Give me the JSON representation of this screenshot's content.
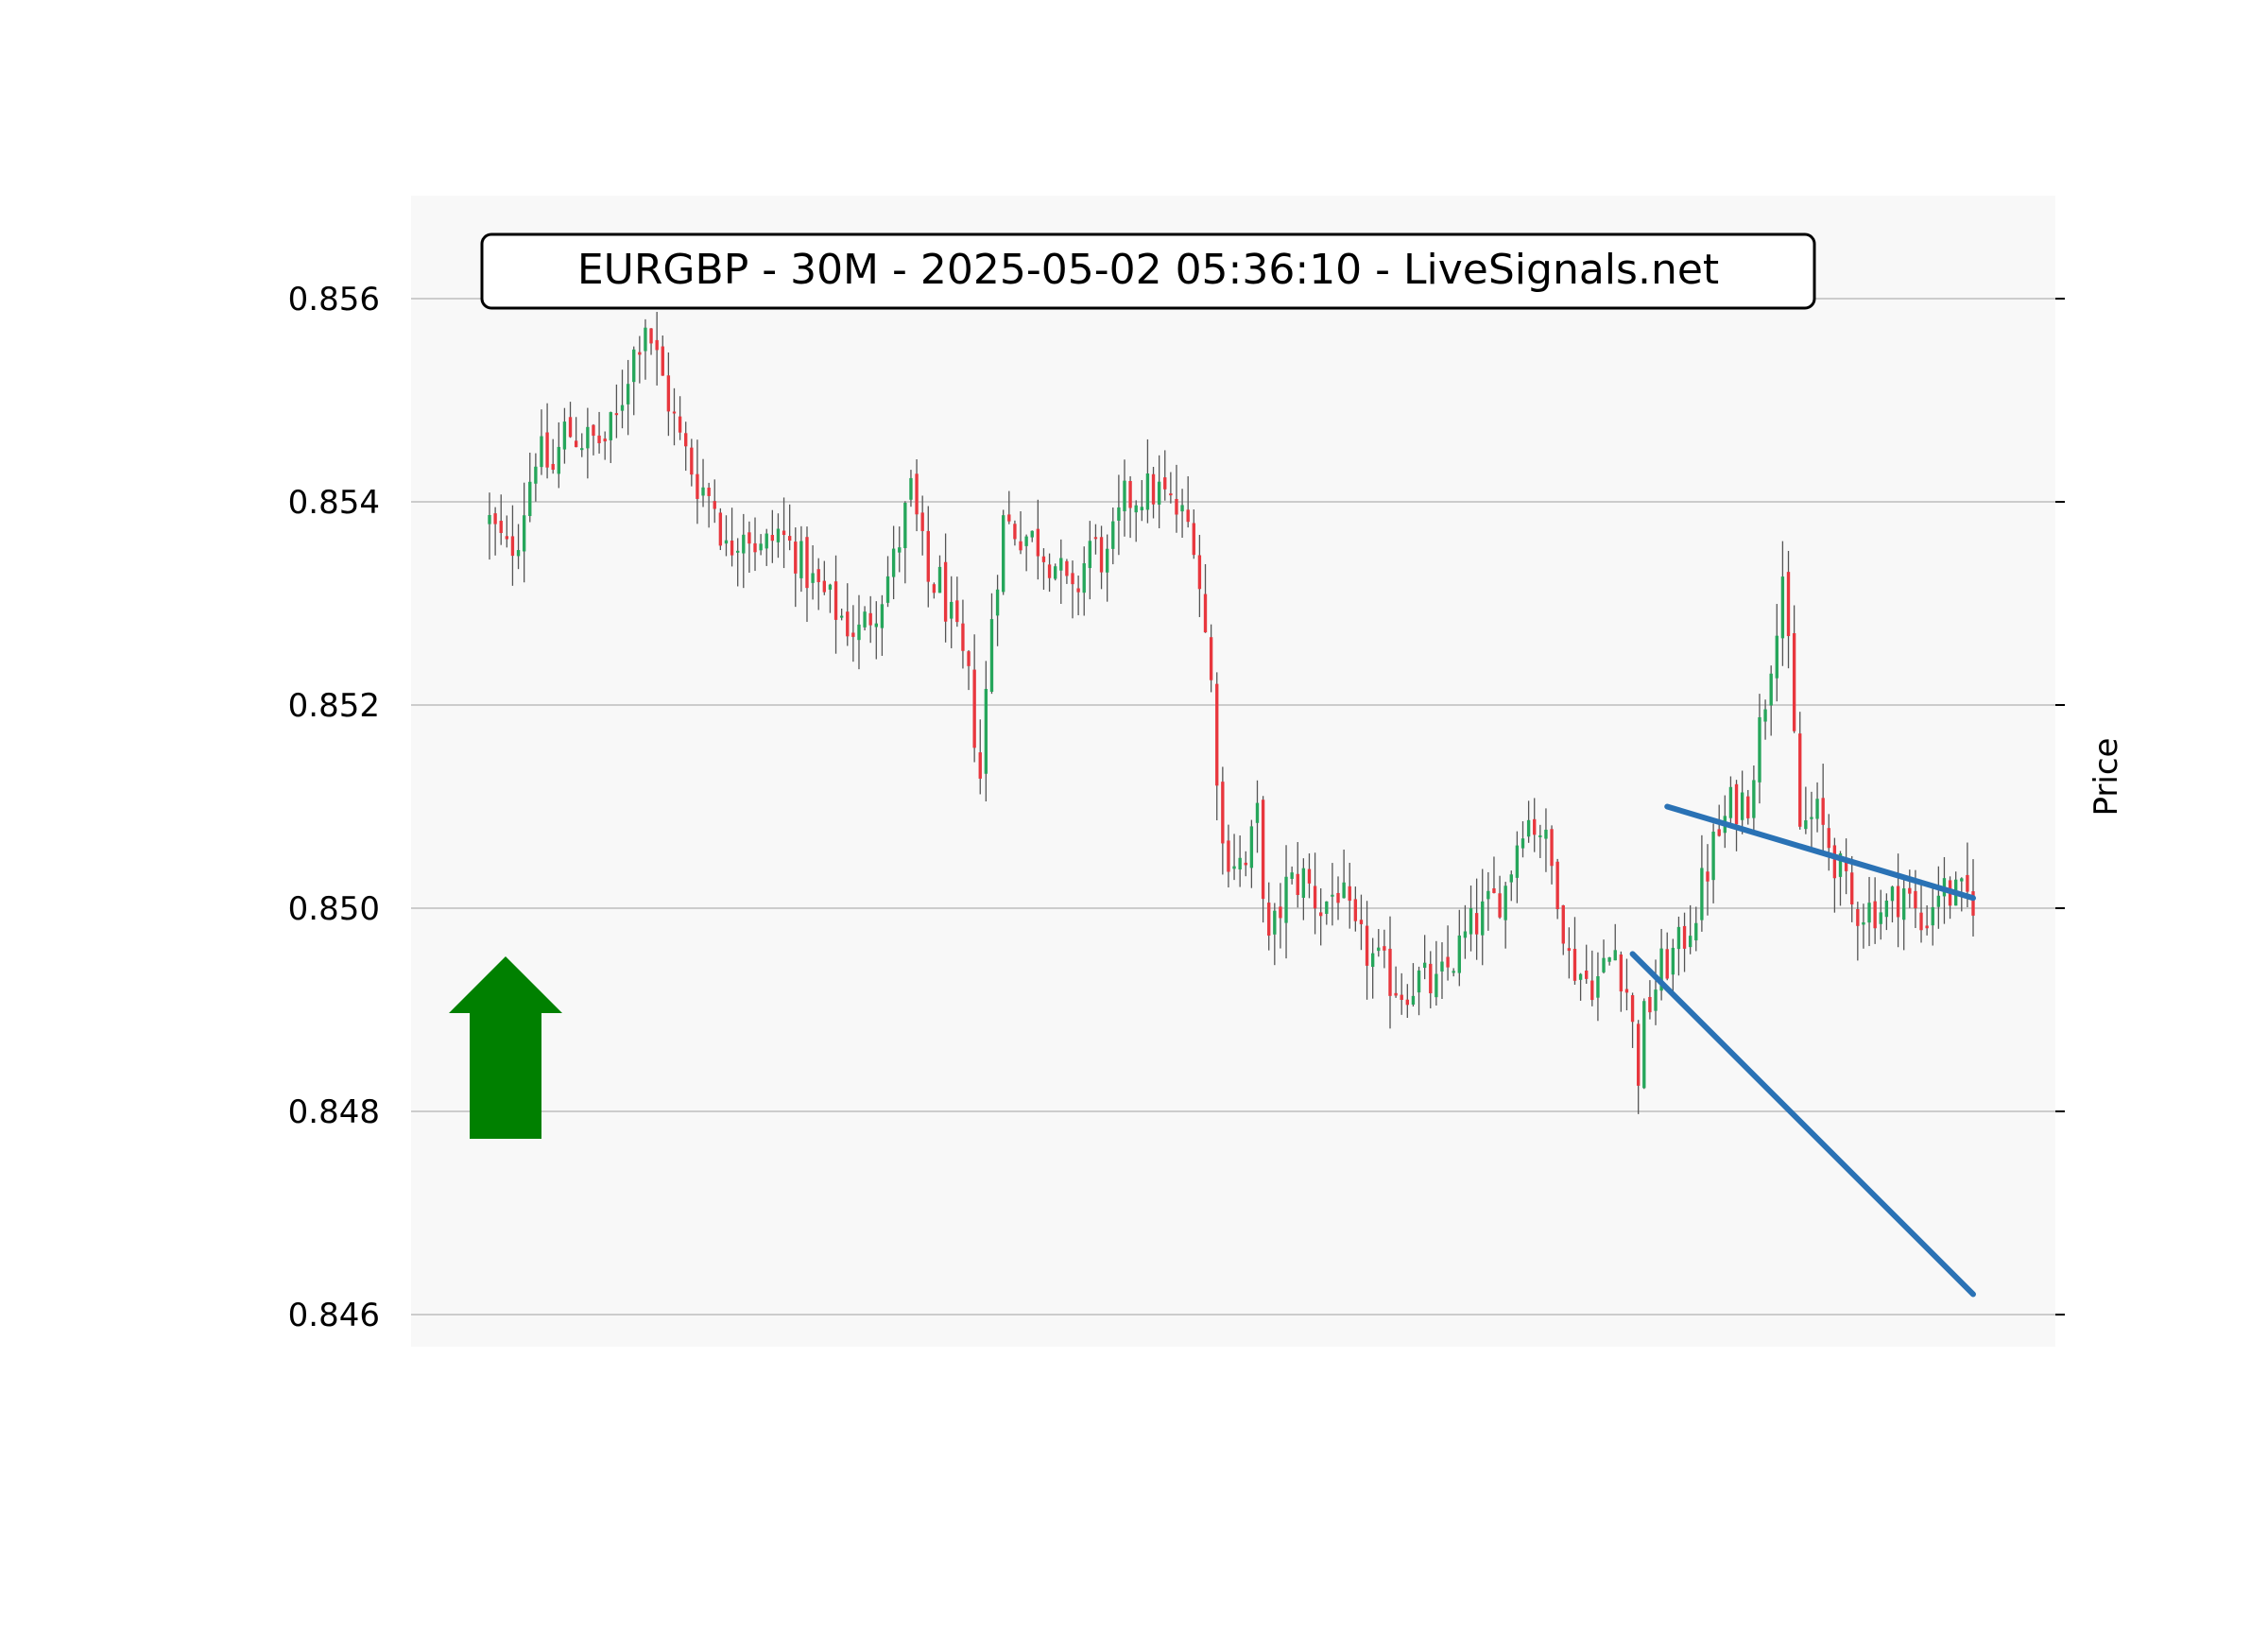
{
  "chart_data": {
    "type": "candlestick",
    "title": "EURGBP - 30M - 2025-05-02 05:36:10 - LiveSignals.net",
    "ylabel": "Price",
    "xlabel": "",
    "ylim": [
      0.8457,
      0.857
    ],
    "yticks": [
      0.846,
      0.848,
      0.85,
      0.852,
      0.854,
      0.856
    ],
    "ytick_labels": [
      "0.846",
      "0.848",
      "0.850",
      "0.852",
      "0.854",
      "0.856"
    ],
    "grid": true,
    "signal": {
      "direction": "up",
      "color": "#008000"
    },
    "colors": {
      "up": "#26a65b",
      "down": "#e8373e",
      "wick": "#555555",
      "trendline": "#2a72b5",
      "plot_bg": "#f8f8f8",
      "grid": "#cccccc"
    },
    "trendlines": [
      {
        "name": "upper",
        "from": {
          "x": 204,
          "y": 0.851
        },
        "to": {
          "x": 257,
          "y": 0.8501
        }
      },
      {
        "name": "lower",
        "from": {
          "x": 198,
          "y": 0.84955
        },
        "to": {
          "x": 257,
          "y": 0.8462
        }
      }
    ],
    "x": [
      0,
      257
    ],
    "anchors": [
      [
        0,
        0.8538
      ],
      [
        3,
        0.8535
      ],
      [
        5,
        0.8537
      ],
      [
        8,
        0.8545
      ],
      [
        11,
        0.8543
      ],
      [
        13,
        0.8547
      ],
      [
        17,
        0.8546
      ],
      [
        20,
        0.8546
      ],
      [
        22,
        0.8548
      ],
      [
        24,
        0.8553
      ],
      [
        27,
        0.8558
      ],
      [
        30,
        0.8552
      ],
      [
        33,
        0.8546
      ],
      [
        36,
        0.8542
      ],
      [
        39,
        0.854
      ],
      [
        41,
        0.8535
      ],
      [
        44,
        0.8538
      ],
      [
        47,
        0.8535
      ],
      [
        50,
        0.8537
      ],
      [
        53,
        0.8535
      ],
      [
        56,
        0.8532
      ],
      [
        59,
        0.853
      ],
      [
        62,
        0.8528
      ],
      [
        64,
        0.8527
      ],
      [
        67,
        0.853
      ],
      [
        70,
        0.8534
      ],
      [
        73,
        0.8541
      ],
      [
        76,
        0.8532
      ],
      [
        78,
        0.8532
      ],
      [
        81,
        0.8526
      ],
      [
        83,
        0.8522
      ],
      [
        85,
        0.8513
      ],
      [
        87,
        0.8529
      ],
      [
        89,
        0.8538
      ],
      [
        92,
        0.8537
      ],
      [
        95,
        0.8536
      ],
      [
        98,
        0.8534
      ],
      [
        101,
        0.853
      ],
      [
        104,
        0.8536
      ],
      [
        107,
        0.8534
      ],
      [
        110,
        0.854
      ],
      [
        113,
        0.8541
      ],
      [
        116,
        0.8541
      ],
      [
        119,
        0.8539
      ],
      [
        122,
        0.8537
      ],
      [
        125,
        0.8522
      ],
      [
        127,
        0.8506
      ],
      [
        129,
        0.8505
      ],
      [
        131,
        0.8504
      ],
      [
        133,
        0.8509
      ],
      [
        135,
        0.8496
      ],
      [
        138,
        0.8502
      ],
      [
        141,
        0.8503
      ],
      [
        144,
        0.85
      ],
      [
        147,
        0.8502
      ],
      [
        150,
        0.8497
      ],
      [
        153,
        0.8495
      ],
      [
        156,
        0.8493
      ],
      [
        158,
        0.8492
      ],
      [
        161,
        0.8493
      ],
      [
        164,
        0.8492
      ],
      [
        167,
        0.8495
      ],
      [
        170,
        0.8498
      ],
      [
        173,
        0.85
      ],
      [
        176,
        0.8502
      ],
      [
        179,
        0.8509
      ],
      [
        182,
        0.8508
      ],
      [
        185,
        0.8502
      ],
      [
        187,
        0.8495
      ],
      [
        190,
        0.8493
      ],
      [
        192,
        0.8493
      ],
      [
        195,
        0.8496
      ],
      [
        197,
        0.8492
      ],
      [
        199,
        0.8484
      ],
      [
        200,
        0.8489
      ],
      [
        203,
        0.8494
      ],
      [
        206,
        0.8496
      ],
      [
        209,
        0.85
      ],
      [
        212,
        0.8506
      ],
      [
        215,
        0.851
      ],
      [
        218,
        0.8511
      ],
      [
        221,
        0.8521
      ],
      [
        224,
        0.8533
      ],
      [
        227,
        0.8508
      ],
      [
        230,
        0.8509
      ],
      [
        233,
        0.8505
      ],
      [
        236,
        0.85
      ],
      [
        239,
        0.85
      ],
      [
        242,
        0.85
      ],
      [
        245,
        0.8502
      ],
      [
        248,
        0.8498
      ],
      [
        251,
        0.8502
      ],
      [
        254,
        0.8501
      ],
      [
        257,
        0.8501
      ]
    ]
  }
}
